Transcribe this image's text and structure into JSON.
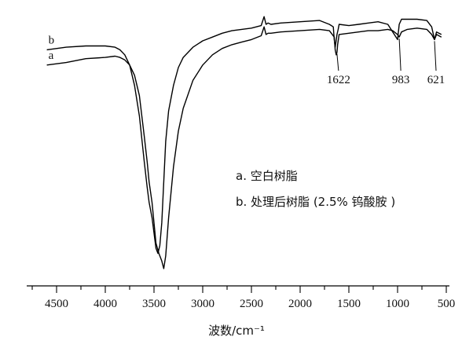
{
  "chart_data": {
    "type": "line",
    "title": "",
    "xlabel": "波数/cm⁻¹",
    "ylabel": "",
    "xlim": [
      4750,
      500
    ],
    "x_ticks": [
      4500,
      4000,
      3500,
      3000,
      2500,
      2000,
      1500,
      1000,
      500
    ],
    "x_tick_labels": [
      "4500",
      "4000",
      "3500",
      "3000",
      "2500",
      "2000",
      "1500",
      "1000",
      "500"
    ],
    "ylim": [
      0,
      100
    ],
    "y_axis_visible": false,
    "grid": false,
    "legend": {
      "placement": "center-right",
      "entries": [
        "a. 空白树脂",
        "b. 处理后树脂 (2.5% 钨酸胺 )"
      ]
    },
    "series": [
      {
        "name": "a",
        "x": [
          4600,
          4400,
          4200,
          4000,
          3900,
          3850,
          3800,
          3750,
          3700,
          3650,
          3600,
          3570,
          3550,
          3520,
          3500,
          3480,
          3450,
          3420,
          3400,
          3380,
          3350,
          3300,
          3250,
          3200,
          3100,
          3000,
          2900,
          2800,
          2700,
          2600,
          2500,
          2400,
          2370,
          2350,
          2330,
          2300,
          2200,
          2000,
          1800,
          1700,
          1650,
          1640,
          1630,
          1622,
          1615,
          1600,
          1500,
          1400,
          1300,
          1200,
          1100,
          1050,
          1000,
          983,
          960,
          900,
          800,
          700,
          650,
          621,
          600,
          550
        ],
        "y": [
          80,
          81,
          82.5,
          83,
          83.5,
          83,
          82,
          80,
          76,
          68,
          52,
          42,
          34,
          26,
          18,
          10,
          6,
          3,
          0,
          5,
          20,
          40,
          54,
          63,
          74,
          80,
          84,
          86.5,
          88,
          89,
          90,
          91.5,
          95,
          92,
          92.5,
          92.5,
          93,
          93.5,
          94,
          93.5,
          91,
          86,
          84,
          85,
          88,
          92,
          92.5,
          93,
          93.5,
          93.5,
          94,
          93.5,
          92,
          91,
          93,
          94,
          94.5,
          94,
          92,
          90,
          93,
          92
        ]
      },
      {
        "name": "b",
        "x": [
          4600,
          4400,
          4200,
          4000,
          3900,
          3850,
          3800,
          3750,
          3700,
          3650,
          3600,
          3570,
          3550,
          3520,
          3500,
          3480,
          3460,
          3440,
          3420,
          3400,
          3380,
          3350,
          3300,
          3250,
          3200,
          3100,
          3000,
          2900,
          2800,
          2700,
          2600,
          2500,
          2400,
          2370,
          2350,
          2330,
          2300,
          2200,
          2000,
          1800,
          1700,
          1660,
          1650,
          1640,
          1622,
          1610,
          1600,
          1500,
          1400,
          1300,
          1200,
          1100,
          1000,
          983,
          960,
          900,
          800,
          700,
          650,
          621,
          600,
          550
        ],
        "y": [
          86,
          87,
          87.5,
          87.5,
          87,
          86,
          84,
          80,
          72,
          60,
          42,
          32,
          26,
          20,
          14,
          8,
          6,
          9,
          18,
          34,
          50,
          62,
          72,
          79,
          83,
          87,
          89.5,
          91,
          92.5,
          93.5,
          94,
          94.5,
          95.5,
          99,
          96,
          96.5,
          96,
          96.5,
          97,
          97.5,
          96,
          95,
          90,
          87,
          92,
          94,
          96,
          95.5,
          96,
          96.5,
          97,
          96,
          90,
          96,
          98,
          98,
          98,
          97.5,
          95,
          90,
          92,
          91
        ]
      }
    ],
    "series_labels": [
      {
        "text": "b",
        "series": "b"
      },
      {
        "text": "a",
        "series": "a"
      }
    ],
    "annotations": [
      {
        "text": "1622",
        "x": 1622
      },
      {
        "text": "983",
        "x": 983
      },
      {
        "text": "621",
        "x": 621
      }
    ]
  }
}
